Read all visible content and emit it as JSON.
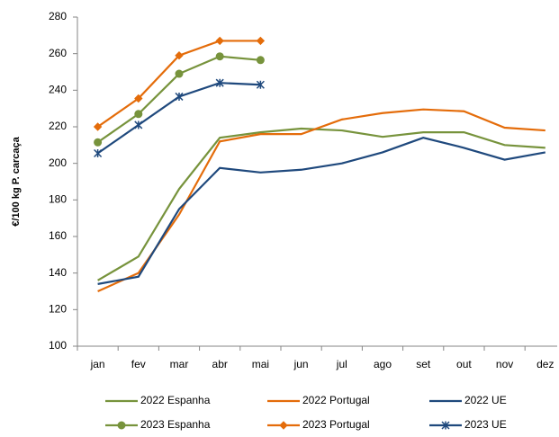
{
  "chart_data": {
    "type": "line",
    "y_label": "€/100 kg P. carcaça",
    "categories": [
      "jan",
      "fev",
      "mar",
      "abr",
      "mai",
      "jun",
      "jul",
      "ago",
      "set",
      "out",
      "nov",
      "dez"
    ],
    "ylim": [
      100,
      280
    ],
    "yticks": [
      100,
      120,
      140,
      160,
      180,
      200,
      220,
      240,
      260,
      280
    ],
    "series": [
      {
        "name": "2022 Espanha",
        "color": "#77933c",
        "marker": "none",
        "values": [
          136,
          149,
          186,
          214,
          217,
          219,
          218,
          214.5,
          217,
          217,
          210,
          208.5
        ]
      },
      {
        "name": "2022 Portugal",
        "color": "#e46c0a",
        "marker": "none",
        "values": [
          130,
          140,
          172,
          212,
          216,
          216,
          224,
          227.5,
          229.5,
          228.5,
          219.5,
          218
        ]
      },
      {
        "name": "2022 UE",
        "color": "#1f497d",
        "marker": "none",
        "values": [
          134,
          138,
          175,
          197.5,
          195,
          196.5,
          200,
          206,
          214,
          208.5,
          202,
          206
        ]
      },
      {
        "name": "2023 Espanha",
        "color": "#77933c",
        "marker": "circle",
        "values": [
          211.5,
          227,
          249,
          258.5,
          256.5,
          null,
          null,
          null,
          null,
          null,
          null,
          null
        ]
      },
      {
        "name": "2023 Portugal",
        "color": "#e46c0a",
        "marker": "diamond",
        "values": [
          220,
          235.5,
          259,
          267,
          267,
          null,
          null,
          null,
          null,
          null,
          null,
          null
        ]
      },
      {
        "name": "2023 UE",
        "color": "#1f497d",
        "marker": "star",
        "values": [
          205.5,
          221,
          236.5,
          244,
          243,
          null,
          null,
          null,
          null,
          null,
          null,
          null
        ]
      }
    ]
  }
}
